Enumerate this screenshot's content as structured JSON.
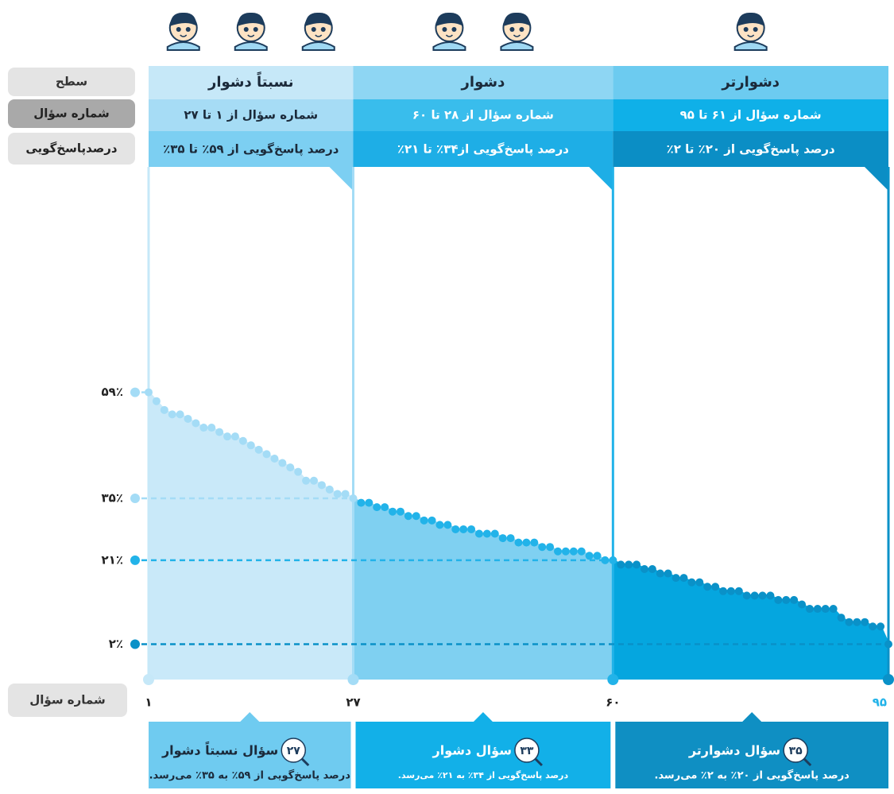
{
  "header": {
    "level": "سطح",
    "questions": "شماره سؤال",
    "rate": "درصدپاسخ‌گویی"
  },
  "chart_data": {
    "type": "line",
    "x_label": "شماره سؤال",
    "x": [
      1,
      2,
      3,
      4,
      5,
      6,
      7,
      8,
      9,
      10,
      11,
      12,
      13,
      14,
      15,
      16,
      17,
      18,
      19,
      20,
      21,
      22,
      23,
      24,
      25,
      26,
      27,
      28,
      29,
      30,
      31,
      32,
      33,
      34,
      35,
      36,
      37,
      38,
      39,
      40,
      41,
      42,
      43,
      44,
      45,
      46,
      47,
      48,
      49,
      50,
      51,
      52,
      53,
      54,
      55,
      56,
      57,
      58,
      59,
      60,
      61,
      62,
      63,
      64,
      65,
      66,
      67,
      68,
      69,
      70,
      71,
      72,
      73,
      74,
      75,
      76,
      77,
      78,
      79,
      80,
      81,
      82,
      83,
      84,
      85,
      86,
      87,
      88,
      89,
      90,
      91,
      92,
      93,
      94,
      95
    ],
    "values": [
      59,
      57,
      55,
      54,
      54,
      53,
      52,
      51,
      51,
      50,
      49,
      49,
      48,
      47,
      46,
      45,
      44,
      43,
      42,
      41,
      39,
      39,
      38,
      37,
      36,
      36,
      35,
      34,
      34,
      33,
      33,
      32,
      32,
      31,
      31,
      30,
      30,
      29,
      29,
      28,
      28,
      28,
      27,
      27,
      27,
      26,
      26,
      25,
      25,
      25,
      24,
      24,
      23,
      23,
      23,
      23,
      22,
      22,
      21,
      21,
      20,
      20,
      20,
      19,
      19,
      18,
      18,
      17,
      17,
      16,
      16,
      15,
      15,
      14,
      14,
      14,
      13,
      13,
      13,
      13,
      12,
      12,
      12,
      11,
      10,
      10,
      10,
      10,
      8,
      7,
      7,
      7,
      6,
      6,
      2
    ],
    "xlim": [
      1,
      95
    ],
    "ylim": [
      -6,
      110
    ],
    "xticks": [
      {
        "value": 1,
        "label": "۱"
      },
      {
        "value": 27,
        "label": "۲۷"
      },
      {
        "value": 60,
        "label": "۶۰"
      },
      {
        "value": 95,
        "label": "۹۵"
      }
    ],
    "yticks": [
      {
        "value": 59,
        "label": "۵۹٪"
      },
      {
        "value": 35,
        "label": "۳۵٪"
      },
      {
        "value": 21,
        "label": "۲۱٪"
      },
      {
        "value": 2,
        "label": "۲٪"
      }
    ],
    "sections": [
      {
        "level": "نسبتاً دشوار",
        "questions": "شماره سؤال از ۱ تا ۲۷",
        "rate": "درصد پاسخ‌گویی از ۵۹٪ تا ۳۵٪",
        "count": "۲۷",
        "box_title": "سؤال نسبتاً دشوار",
        "box_text": "درصد پاسخ‌گویی از ۵۹٪ به ۳۵٪ می‌رسد.",
        "color": "#a4dcf6",
        "fill": "#c9e9f9"
      },
      {
        "level": "دشوار",
        "questions": "شماره سؤال از ۲۸ تا ۶۰",
        "rate": "درصد پاسخ‌گویی از۳۴٪ تا ۲۱٪",
        "count": "۳۳",
        "box_title": "سؤال دشوار",
        "box_text": "درصد پاسخ‌گویی از ۳۴٪ به ۲۱٪ می‌رسد.",
        "color": "#22b3e9",
        "fill": "#7fd0f1"
      },
      {
        "level": "دشوارتر",
        "questions": "شماره سؤال از ۶۱ تا ۹۵",
        "rate": "درصد پاسخ‌گویی از ۲۰٪ تا ۲٪",
        "count": "۳۵",
        "box_title": "سؤال دشوارتر",
        "box_text": "درصد پاسخ‌گویی از ۲۰٪ به ۲٪ می‌رسد.",
        "color": "#0a91c8",
        "fill": "#05a6df"
      }
    ]
  }
}
